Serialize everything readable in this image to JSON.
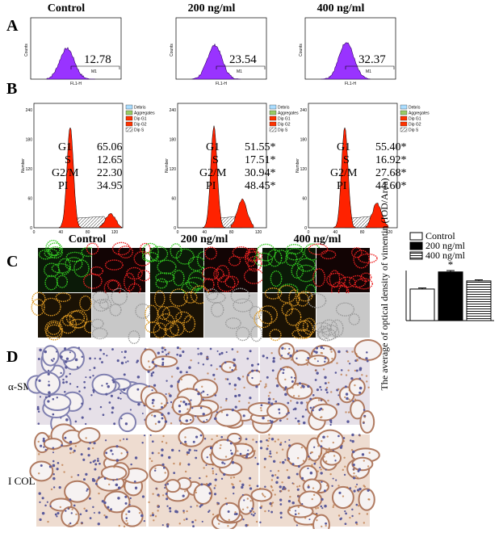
{
  "columns": [
    "Control",
    "200 ng/ml",
    "400 ng/ml"
  ],
  "panel_a": {
    "label": "A",
    "axis_y": "Counts",
    "axis_x": "FL1-H",
    "gate": "M1",
    "values": [
      "12.78",
      "23.54",
      "32.37"
    ]
  },
  "panel_b": {
    "label": "B",
    "axis_y": "Number",
    "xticks": [
      "0",
      "40",
      "80",
      "120"
    ],
    "yticks": [
      "0",
      "60",
      "120",
      "180",
      "240"
    ],
    "legend": [
      "Debris",
      "Aggregates",
      "Dip G1",
      "Dip G2",
      "Dip S"
    ],
    "phases": [
      "G1",
      "S",
      "G2/M",
      "PI"
    ],
    "values": [
      [
        "65.06",
        "12.65",
        "22.30",
        "34.95"
      ],
      [
        "51.55*",
        "17.51*",
        "30.94*",
        "48.45*"
      ],
      [
        "55.40*",
        "16.92*",
        "27.68*",
        "44.60*"
      ]
    ]
  },
  "panel_c": {
    "label": "C",
    "chart": {
      "type": "bar",
      "y_label": "The average of optical density of vimentin (IOD/Area)",
      "categories": [
        "Control",
        "200 ng/ml",
        "400 ng/ml"
      ],
      "values": [
        35,
        54,
        44
      ],
      "errors": [
        1.2,
        1.5,
        1.2
      ],
      "colors": [
        "#ffffff",
        "#000000",
        "#ffffff"
      ],
      "hatch": [
        false,
        false,
        true
      ],
      "ylim": [
        0,
        60
      ],
      "annotation": "*"
    }
  },
  "panel_d": {
    "label": "D",
    "rows": [
      "α-SMA",
      "I COL"
    ]
  }
}
